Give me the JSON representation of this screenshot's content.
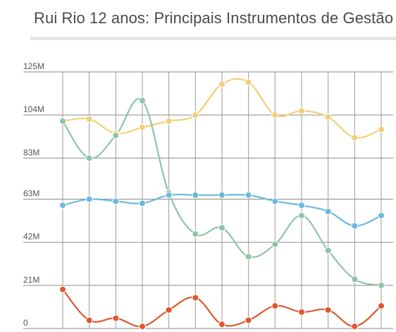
{
  "title": "Rui Rio 12 anos: Principais Instrumentos de Gestão",
  "chart_data": {
    "type": "line",
    "title": "Rui Rio 12 anos: Principais Instrumentos de Gestão",
    "xlabel": "",
    "ylabel": "",
    "ylim": [
      0,
      125
    ],
    "grid": true,
    "legend": "none",
    "y_ticks": [
      {
        "value": 0,
        "label": "0"
      },
      {
        "value": 21,
        "label": "21M"
      },
      {
        "value": 42,
        "label": "42M"
      },
      {
        "value": 63,
        "label": "63M"
      },
      {
        "value": 83,
        "label": "83M"
      },
      {
        "value": 104,
        "label": "104M"
      },
      {
        "value": 125,
        "label": "125M"
      }
    ],
    "x": [
      1,
      2,
      3,
      4,
      5,
      6,
      7,
      8,
      9,
      10,
      11,
      12,
      13
    ],
    "series": [
      {
        "color": "#f0d07a",
        "values": [
          101,
          102,
          95,
          98,
          101,
          104,
          119,
          120,
          104,
          106,
          103,
          93,
          97
        ]
      },
      {
        "color": "#8ec5a7",
        "values": [
          101,
          83,
          94,
          111,
          66,
          46,
          49,
          35,
          41,
          55,
          38,
          24,
          21
        ]
      },
      {
        "color": "#6cb9dd",
        "values": [
          60,
          63,
          62,
          61,
          65,
          65,
          65,
          65,
          62,
          60,
          57,
          50,
          55
        ]
      },
      {
        "color": "#e0572e",
        "values": [
          19,
          4,
          5,
          1,
          9,
          15,
          2,
          4,
          11,
          8,
          9,
          1,
          11
        ]
      }
    ]
  }
}
